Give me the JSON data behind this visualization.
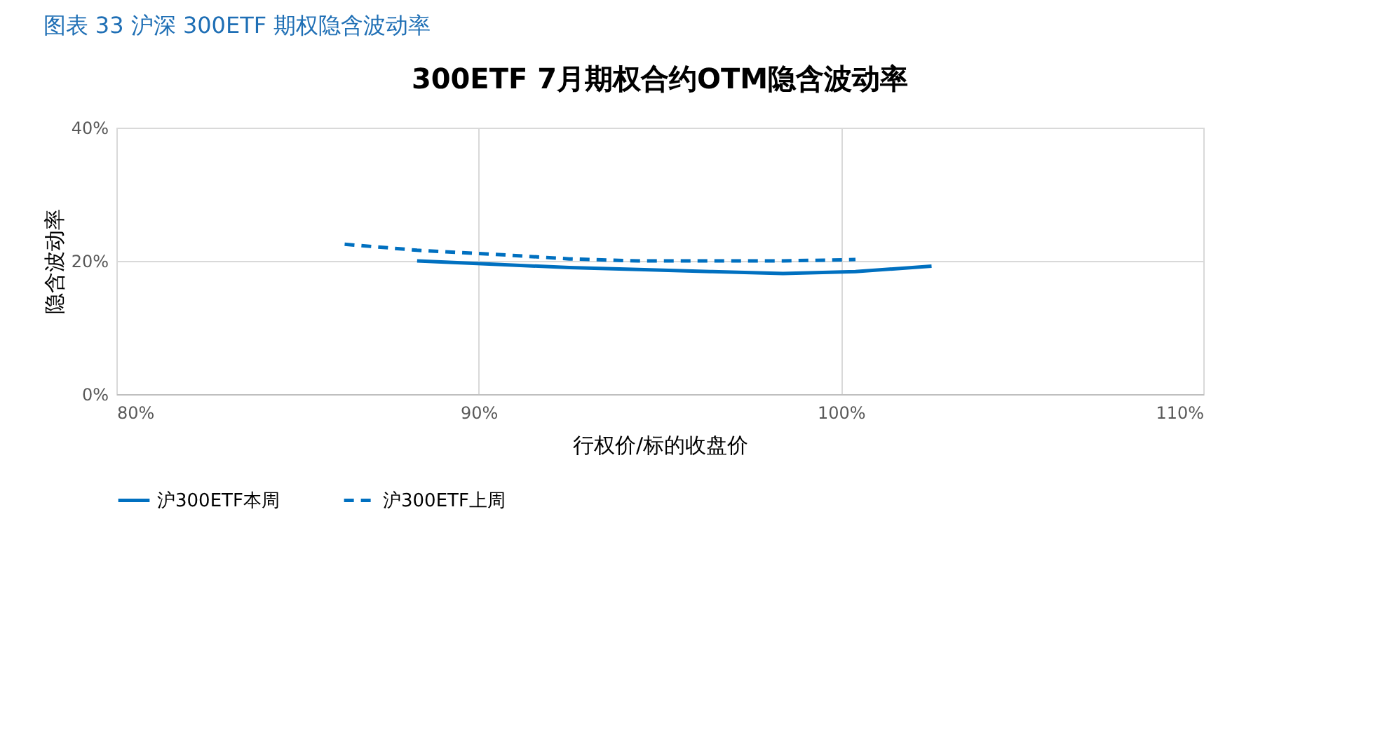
{
  "chart_data": {
    "type": "line",
    "title": "300ETF 7月期权合约OTM隐含波动率",
    "subtitle": "图表 33 沪深 300ETF 期权隐含波动率",
    "xlabel": "行权价/标的收盘价",
    "ylabel": "隐含波动率",
    "xlim": [
      0.8,
      1.1
    ],
    "xticks": [
      {
        "value": 0.8,
        "label": "80%"
      },
      {
        "value": 0.9,
        "label": "90%"
      },
      {
        "value": 1.0,
        "label": "100%"
      },
      {
        "value": 1.1,
        "label": "110%"
      }
    ],
    "ylim": [
      0,
      0.4
    ],
    "yticks": [
      {
        "value": 0,
        "label": "0%"
      },
      {
        "value": 0.2,
        "label": "20%"
      },
      {
        "value": 0.4,
        "label": "40%"
      }
    ],
    "grid": true,
    "legend": "bottom",
    "series": [
      {
        "name": "沪300ETF本周",
        "color": "#0070c0",
        "line_style": "solid",
        "x": [
          0.883,
          0.904,
          0.925,
          0.944,
          0.964,
          0.984,
          1.004,
          1.025
        ],
        "values": [
          0.2,
          0.195,
          0.19,
          0.187,
          0.184,
          0.181,
          0.184,
          0.192
        ]
      },
      {
        "name": "沪300ETF上周",
        "color": "#0070c0",
        "line_style": "dashed",
        "x": [
          0.863,
          0.883,
          0.904,
          0.925,
          0.944,
          0.964,
          0.984,
          1.004
        ],
        "values": [
          0.225,
          0.216,
          0.21,
          0.203,
          0.2,
          0.2,
          0.2,
          0.202
        ]
      }
    ]
  }
}
